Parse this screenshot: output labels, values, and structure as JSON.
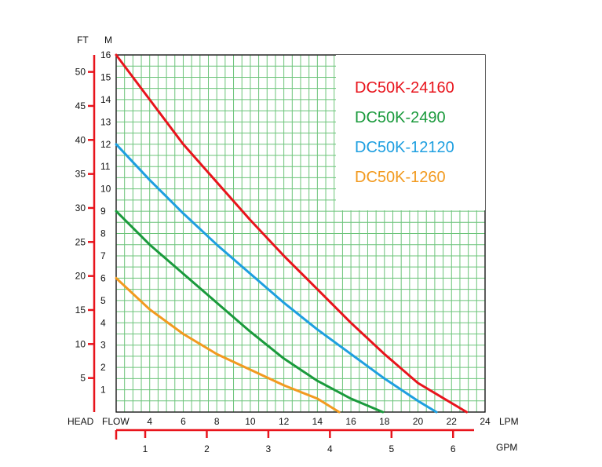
{
  "chart_data": {
    "type": "line",
    "axis_labels": {
      "head": "HEAD",
      "head_ft": "FT",
      "head_m": "M",
      "flow": "FLOW",
      "flow_lpm": "LPM",
      "flow_gpm": "GPM"
    },
    "x_lpm": {
      "min": 2,
      "max": 24,
      "ticks": [
        "4",
        "6",
        "8",
        "10",
        "12",
        "14",
        "16",
        "18",
        "20",
        "22",
        "24"
      ]
    },
    "y_m": {
      "min": 0,
      "max": 16,
      "ticks": [
        "1",
        "2",
        "3",
        "4",
        "5",
        "6",
        "7",
        "8",
        "9",
        "10",
        "11",
        "12",
        "13",
        "14",
        "15",
        "16"
      ]
    },
    "y_ft": {
      "ticks": [
        "5",
        "10",
        "15",
        "20",
        "25",
        "30",
        "35",
        "40",
        "45",
        "50"
      ],
      "ticks_values": [
        5,
        10,
        15,
        20,
        25,
        30,
        35,
        40,
        45,
        50
      ]
    },
    "x_gpm": {
      "ticks": [
        "1",
        "2",
        "3",
        "4",
        "5",
        "6"
      ],
      "ticks_values": [
        1,
        2,
        3,
        4,
        5,
        6
      ]
    },
    "grid": true,
    "legend_position": "top-right",
    "series": [
      {
        "name": "DC50K-24160",
        "color": "#e8141c",
        "points": [
          [
            2,
            16
          ],
          [
            4,
            14
          ],
          [
            6,
            12
          ],
          [
            8,
            10.3
          ],
          [
            10,
            8.6
          ],
          [
            12,
            7
          ],
          [
            14,
            5.5
          ],
          [
            16,
            4
          ],
          [
            18,
            2.6
          ],
          [
            20,
            1.3
          ],
          [
            22.9,
            0
          ]
        ]
      },
      {
        "name": "DC50K-2490",
        "color": "#1a9a3c",
        "points": [
          [
            2,
            9
          ],
          [
            4,
            7.5
          ],
          [
            6,
            6.2
          ],
          [
            8,
            4.9
          ],
          [
            10,
            3.6
          ],
          [
            12,
            2.4
          ],
          [
            14,
            1.4
          ],
          [
            16,
            0.6
          ],
          [
            17.9,
            0
          ]
        ]
      },
      {
        "name": "DC50K-12120",
        "color": "#1e9fe0",
        "points": [
          [
            2,
            12
          ],
          [
            4,
            10.4
          ],
          [
            6,
            8.9
          ],
          [
            8,
            7.5
          ],
          [
            10,
            6.2
          ],
          [
            12,
            4.9
          ],
          [
            14,
            3.7
          ],
          [
            16,
            2.6
          ],
          [
            18,
            1.5
          ],
          [
            20,
            0.5
          ],
          [
            21.1,
            0
          ]
        ]
      },
      {
        "name": "DC50K-1260",
        "color": "#f29a1f",
        "points": [
          [
            2,
            6
          ],
          [
            4,
            4.6
          ],
          [
            6,
            3.5
          ],
          [
            8,
            2.6
          ],
          [
            10,
            1.9
          ],
          [
            12,
            1.2
          ],
          [
            14,
            0.6
          ],
          [
            15.3,
            0
          ]
        ]
      }
    ]
  }
}
